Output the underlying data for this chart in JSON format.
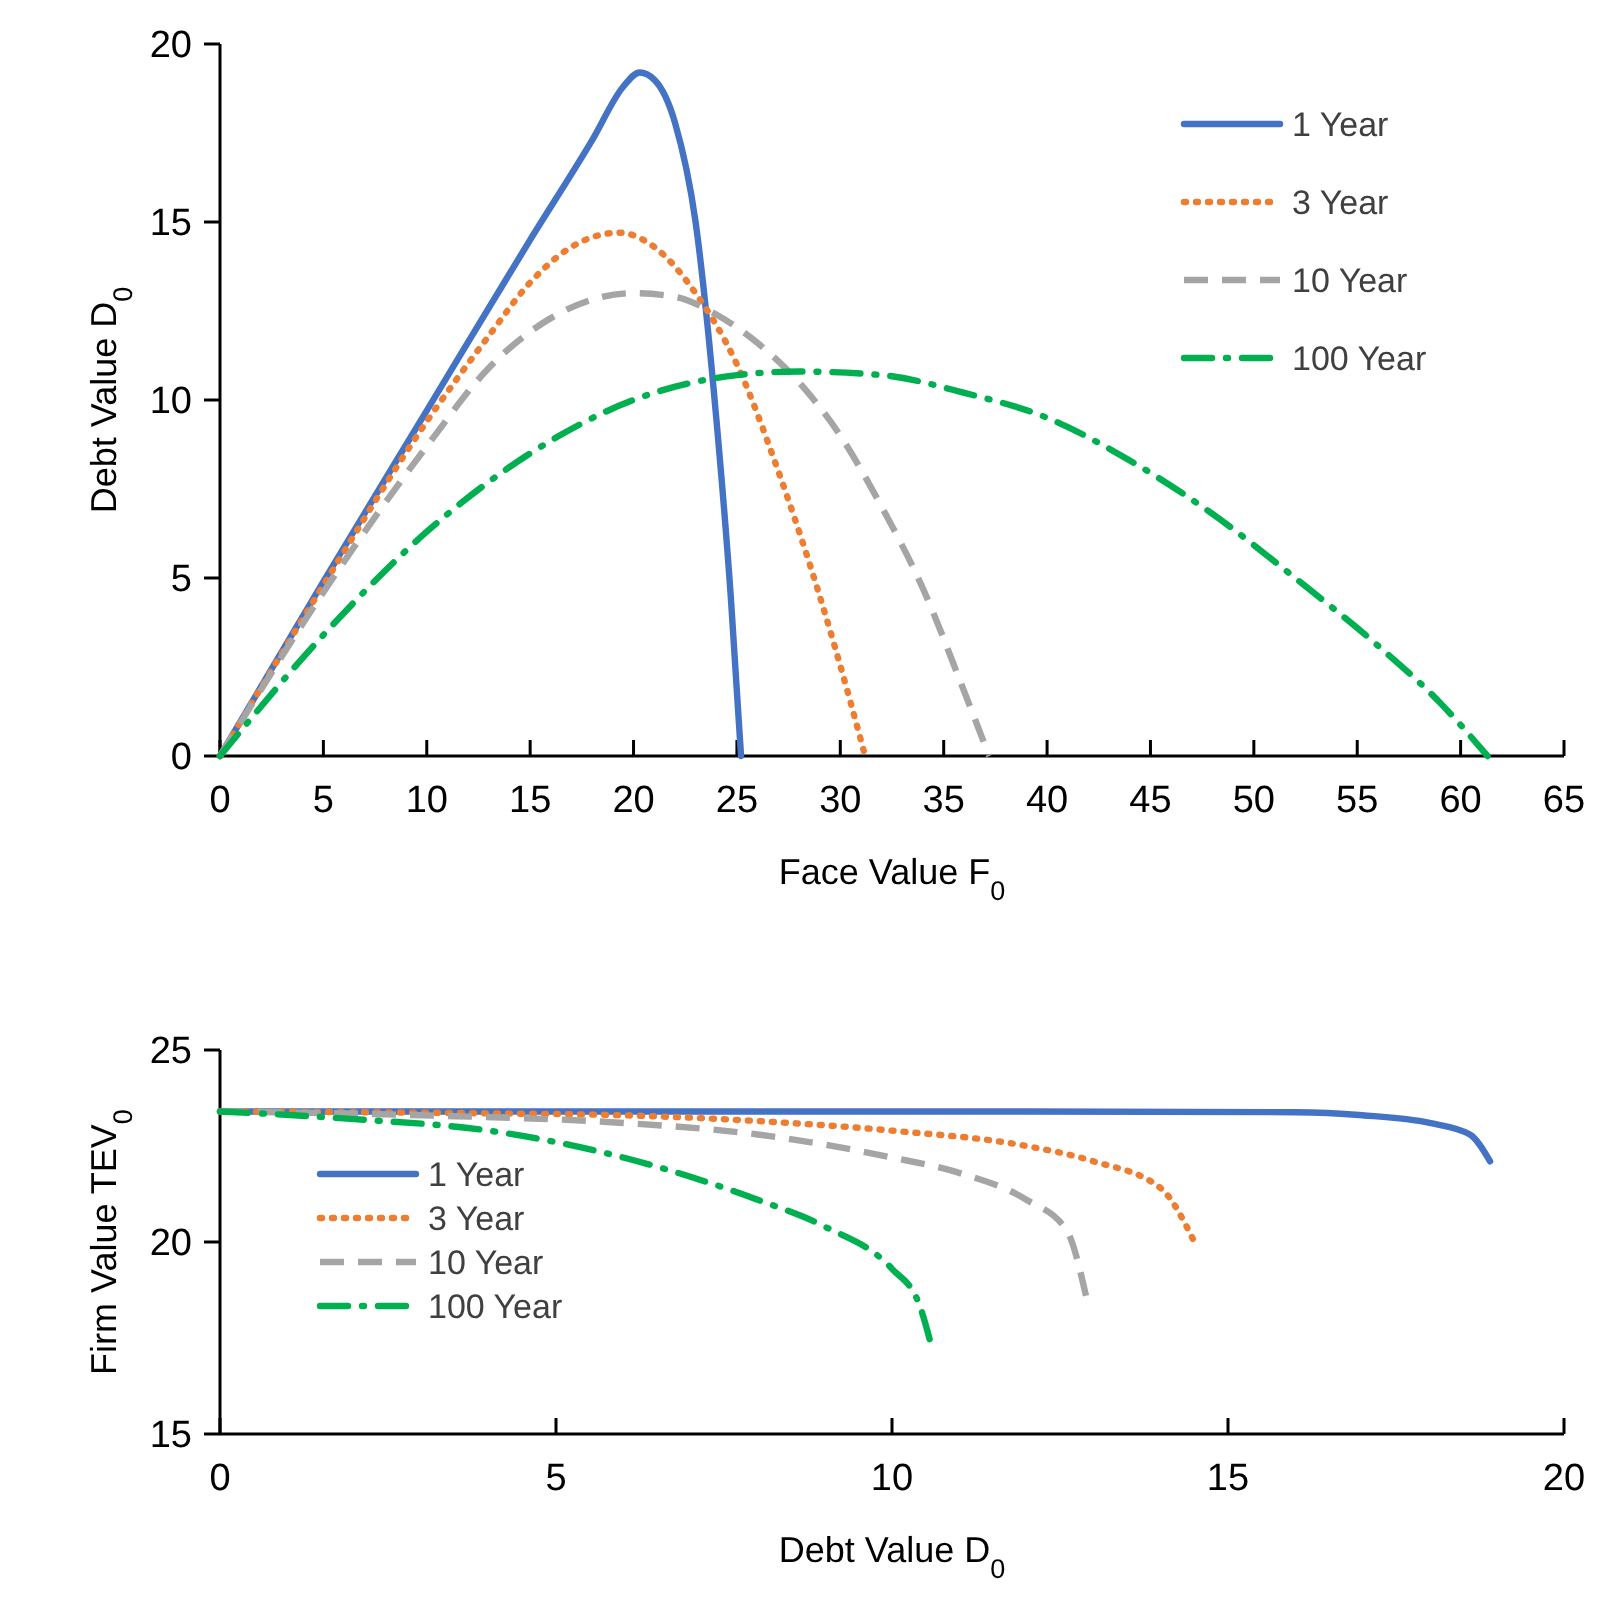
{
  "chart_data": [
    {
      "type": "line",
      "xlabel": "Face Value F$_{0}$",
      "ylabel": "Debt Value D$_{0}$",
      "xlim": [
        0,
        65
      ],
      "ylim": [
        0,
        20
      ],
      "xticks": [
        0,
        5,
        10,
        15,
        20,
        25,
        30,
        35,
        40,
        45,
        50,
        55,
        60,
        65
      ],
      "yticks": [
        0,
        5,
        10,
        15,
        20
      ],
      "grid": false,
      "legend": "top right",
      "series": [
        {
          "name": "1 Year",
          "color": "#4472c4",
          "line_style": "solid",
          "x": [
            0,
            5,
            10,
            15,
            18,
            19.5,
            20.3,
            21,
            22,
            23,
            24,
            24.7,
            25.2
          ],
          "values": [
            0,
            4.9,
            9.7,
            14.5,
            17.3,
            18.8,
            19.2,
            19,
            17.8,
            15,
            9.5,
            4.5,
            0
          ]
        },
        {
          "name": "3 Year",
          "color": "#ed7d31",
          "line_style": "dotted",
          "x": [
            0,
            5,
            10,
            13,
            15,
            17,
            19.3,
            21,
            23,
            25,
            27,
            29,
            30.5,
            31.2
          ],
          "values": [
            0,
            4.8,
            9.4,
            11.8,
            13.3,
            14.3,
            14.7,
            14.3,
            13,
            11,
            8,
            4.5,
            1.5,
            0
          ]
        },
        {
          "name": "10 Year",
          "color": "#a5a5a5",
          "line_style": "dashed",
          "x": [
            0,
            5,
            10,
            13,
            16,
            20,
            22,
            24,
            26,
            28,
            30,
            32,
            34,
            36,
            37.2
          ],
          "values": [
            0,
            4.6,
            8.7,
            10.9,
            12.3,
            13,
            12.9,
            12.4,
            11.6,
            10.5,
            9,
            7,
            4.7,
            1.8,
            0
          ]
        },
        {
          "name": "100 Year",
          "color": "#00b050",
          "line_style": "dashdot",
          "x": [
            0,
            5,
            10,
            15,
            20,
            25,
            28,
            32,
            36,
            40,
            44,
            48,
            52,
            56,
            59,
            61.3
          ],
          "values": [
            0,
            3.4,
            6.3,
            8.5,
            10,
            10.7,
            10.8,
            10.7,
            10.2,
            9.5,
            8.3,
            6.8,
            5,
            3.1,
            1.5,
            0
          ]
        }
      ]
    },
    {
      "type": "line",
      "xlabel": "Debt Value D$_{0}$",
      "ylabel": "Firm Value TEV$_{0}$",
      "xlim": [
        0,
        20
      ],
      "ylim": [
        15,
        25
      ],
      "xticks": [
        0,
        5,
        10,
        15,
        20
      ],
      "yticks": [
        15,
        20,
        25
      ],
      "grid": false,
      "legend": "left",
      "series": [
        {
          "name": "1 Year",
          "color": "#4472c4",
          "line_style": "solid",
          "x": [
            0,
            4,
            8,
            12,
            16,
            17,
            18,
            18.6,
            18.9
          ],
          "values": [
            23.4,
            23.4,
            23.4,
            23.4,
            23.38,
            23.3,
            23.1,
            22.8,
            22.1
          ]
        },
        {
          "name": "3 Year",
          "color": "#ed7d31",
          "line_style": "dotted",
          "x": [
            0,
            4,
            6,
            8,
            10,
            12,
            13,
            14,
            14.5
          ],
          "values": [
            23.4,
            23.35,
            23.3,
            23.15,
            22.9,
            22.5,
            22.1,
            21.4,
            20
          ]
        },
        {
          "name": "10 Year",
          "color": "#a5a5a5",
          "line_style": "dashed",
          "x": [
            0,
            3,
            6,
            8,
            10,
            11,
            12,
            12.6,
            12.9
          ],
          "values": [
            23.4,
            23.3,
            23.1,
            22.8,
            22.2,
            21.8,
            21.1,
            20.3,
            18.5
          ]
        },
        {
          "name": "100 Year",
          "color": "#00b050",
          "line_style": "dashdot",
          "x": [
            0,
            2,
            4,
            6,
            8,
            9,
            10,
            10.4,
            10.6
          ],
          "values": [
            23.4,
            23.2,
            22.9,
            22.2,
            21.1,
            20.4,
            19.3,
            18.4,
            17.2
          ]
        }
      ]
    }
  ]
}
